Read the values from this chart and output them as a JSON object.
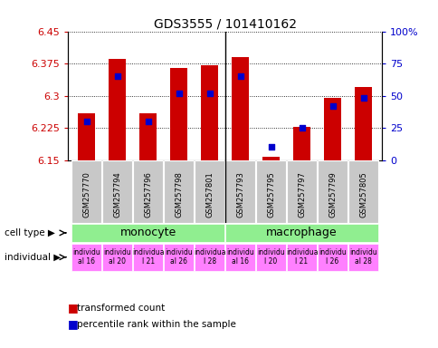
{
  "title": "GDS3555 / 101410162",
  "samples": [
    "GSM257770",
    "GSM257794",
    "GSM257796",
    "GSM257798",
    "GSM257801",
    "GSM257793",
    "GSM257795",
    "GSM257797",
    "GSM257799",
    "GSM257805"
  ],
  "transformed_count": [
    6.258,
    6.385,
    6.258,
    6.365,
    6.37,
    6.39,
    6.158,
    6.228,
    6.295,
    6.32
  ],
  "percentile_rank": [
    30,
    65,
    30,
    52,
    52,
    65,
    10,
    25,
    42,
    48
  ],
  "ylim_left": [
    6.15,
    6.45
  ],
  "ylim_right": [
    0,
    100
  ],
  "yticks_left": [
    6.15,
    6.225,
    6.3,
    6.375,
    6.45
  ],
  "yticks_right": [
    0,
    25,
    50,
    75,
    100
  ],
  "bar_color": "#cc0000",
  "dot_color": "#0000cc",
  "bar_bottom": 6.15,
  "monocyte_range": [
    0,
    5
  ],
  "macrophage_range": [
    5,
    10
  ],
  "cell_type_color": "#90ee90",
  "individual_color": "#ff80ff",
  "sample_band_color": "#c8c8c8",
  "ind_labels": [
    "individu\nal 16",
    "individu\nal 20",
    "individua\nl 21",
    "individu\nal 26",
    "individua\nl 28",
    "individu\nal 16",
    "individu\nl 20",
    "individua\nl 21",
    "individu\nl 26",
    "individu\nal 28"
  ],
  "grid_color": "black",
  "background_color": "white",
  "axis_label_color_left": "#cc0000",
  "axis_label_color_right": "#0000cc"
}
